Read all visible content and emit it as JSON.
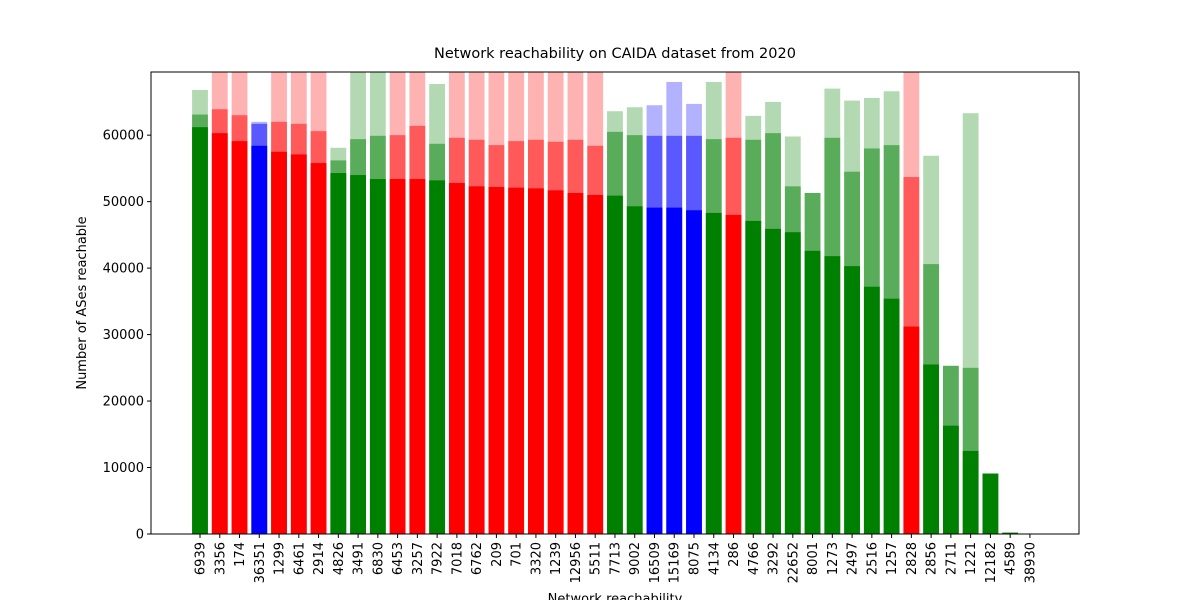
{
  "chart_data": {
    "type": "bar",
    "title": "Network reachability on CAIDA dataset from 2020",
    "x_label": "Network reachability",
    "y_label": "Number of ASes reachable",
    "categories": [
      "6939",
      "3356",
      "174",
      "36351",
      "1299",
      "6461",
      "2914",
      "4826",
      "3491",
      "6830",
      "6453",
      "3257",
      "7922",
      "7018",
      "6762",
      "209",
      "701",
      "3320",
      "1239",
      "12956",
      "5511",
      "7713",
      "9002",
      "16509",
      "15169",
      "8075",
      "4134",
      "286",
      "4766",
      "3292",
      "22652",
      "8001",
      "1273",
      "2497",
      "2516",
      "1257",
      "2828",
      "2856",
      "2711",
      "1221",
      "12182",
      "4589",
      "38930"
    ],
    "colors": [
      "#008000",
      "#ff0000",
      "#ff0000",
      "#0000ff",
      "#ff0000",
      "#ff0000",
      "#ff0000",
      "#008000",
      "#008000",
      "#008000",
      "#ff0000",
      "#ff0000",
      "#008000",
      "#ff0000",
      "#ff0000",
      "#ff0000",
      "#ff0000",
      "#ff0000",
      "#ff0000",
      "#ff0000",
      "#ff0000",
      "#008000",
      "#008000",
      "#0000ff",
      "#0000ff",
      "#0000ff",
      "#008000",
      "#ff0000",
      "#008000",
      "#008000",
      "#008000",
      "#008000",
      "#008000",
      "#008000",
      "#008000",
      "#008000",
      "#ff0000",
      "#008000",
      "#008000",
      "#008000",
      "#008000",
      "#008000",
      "#008000"
    ],
    "series": [
      {
        "opacity": 0.3,
        "values": [
          66800,
          70000,
          70000,
          62000,
          70000,
          70000,
          70000,
          58100,
          70000,
          70000,
          70000,
          70000,
          67700,
          70000,
          70000,
          70000,
          70000,
          70000,
          70000,
          70000,
          70000,
          63600,
          64200,
          64500,
          68000,
          64700,
          68000,
          70000,
          62900,
          65000,
          59800,
          51300,
          67000,
          65200,
          65600,
          66600,
          70000,
          56900,
          25300,
          63300,
          9100,
          200,
          0
        ]
      },
      {
        "opacity": 0.5,
        "values": [
          63100,
          63900,
          63000,
          61700,
          62000,
          61700,
          60600,
          56200,
          59400,
          59900,
          60000,
          61400,
          58700,
          59600,
          59300,
          58500,
          59100,
          59300,
          59000,
          59300,
          58400,
          60500,
          60000,
          59900,
          59900,
          59900,
          59400,
          59600,
          59300,
          60300,
          52300,
          51300,
          59600,
          54500,
          58000,
          58500,
          53700,
          40600,
          25300,
          25000,
          9100,
          200,
          0
        ]
      },
      {
        "opacity": 1,
        "values": [
          61200,
          60300,
          59100,
          58400,
          57500,
          57100,
          55800,
          54300,
          54000,
          53400,
          53400,
          53400,
          53200,
          52800,
          52300,
          52200,
          52100,
          52000,
          51700,
          51300,
          51000,
          50900,
          49300,
          49100,
          49100,
          48700,
          48300,
          48000,
          47100,
          45900,
          45400,
          42600,
          41800,
          40300,
          37200,
          35400,
          31200,
          25500,
          16300,
          12500,
          9100,
          200,
          0
        ]
      }
    ],
    "ylim": [
      0,
      69500
    ],
    "yticks": [
      0,
      10000,
      20000,
      30000,
      40000,
      50000,
      60000
    ],
    "grid": false
  }
}
